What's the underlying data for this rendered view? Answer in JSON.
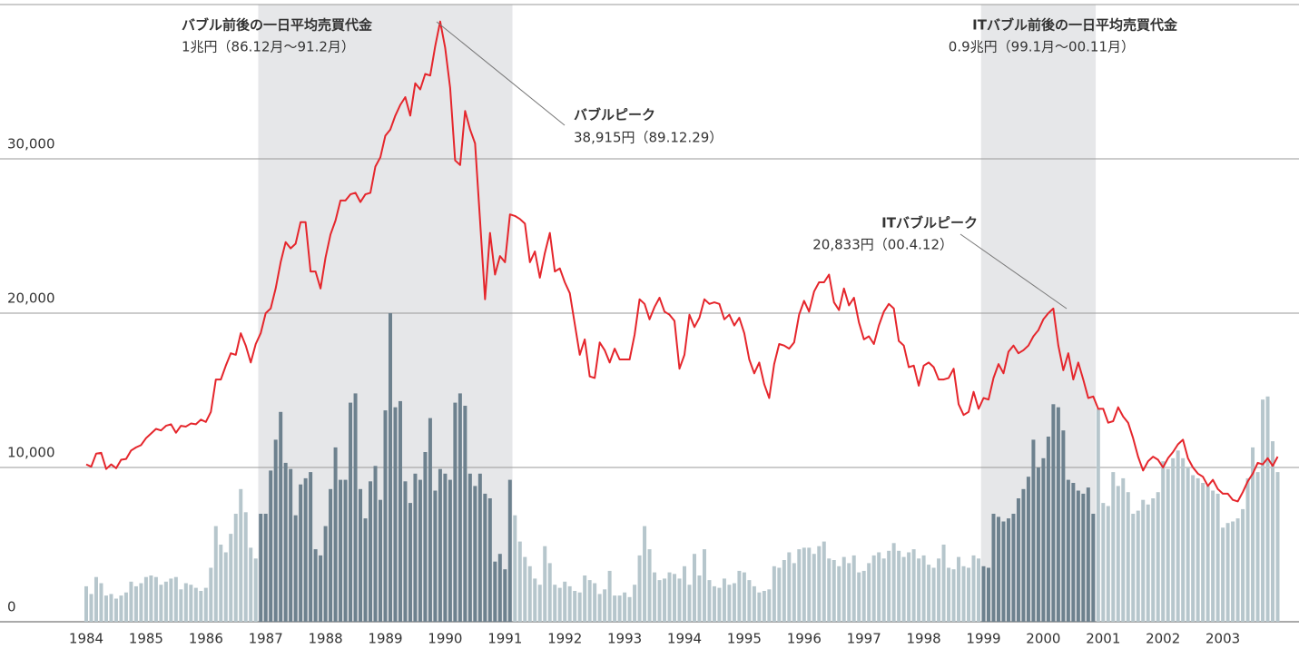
{
  "chart_data": {
    "type": "bar-line",
    "ylim": [
      0,
      40000
    ],
    "yticks": [
      {
        "value": 0,
        "label": "0"
      },
      {
        "value": 10000,
        "label": "10,000"
      },
      {
        "value": 20000,
        "label": "20,000"
      },
      {
        "value": 30000,
        "label": "30,000"
      }
    ],
    "grid": true,
    "annotations": [
      {
        "title": "バブル前後の一日平均売買代金",
        "text": "1兆円（86.12月～91.2月）"
      },
      {
        "title": "バブルピーク",
        "text": "38,915円（89.12.29）"
      },
      {
        "title": "ITバブル前後の一日平均売買代金",
        "text": "0.9兆円（99.1月～00.11月）"
      },
      {
        "title": "ITバブルピーク",
        "text": "20,833円（00.4.12）"
      }
    ],
    "categories": [
      "1984",
      null,
      null,
      null,
      null,
      null,
      null,
      null,
      null,
      null,
      null,
      null,
      "1985",
      null,
      null,
      null,
      null,
      null,
      null,
      null,
      null,
      null,
      null,
      null,
      "1986",
      null,
      null,
      null,
      null,
      null,
      null,
      null,
      null,
      null,
      null,
      null,
      "1987",
      null,
      null,
      null,
      null,
      null,
      null,
      null,
      null,
      null,
      null,
      null,
      "1988",
      null,
      null,
      null,
      null,
      null,
      null,
      null,
      null,
      null,
      null,
      null,
      "1989",
      null,
      null,
      null,
      null,
      null,
      null,
      null,
      null,
      null,
      null,
      null,
      "1990",
      null,
      null,
      null,
      null,
      null,
      null,
      null,
      null,
      null,
      null,
      null,
      "1991",
      null,
      null,
      null,
      null,
      null,
      null,
      null,
      null,
      null,
      null,
      null,
      "1992",
      null,
      null,
      null,
      null,
      null,
      null,
      null,
      null,
      null,
      null,
      null,
      "1993",
      null,
      null,
      null,
      null,
      null,
      null,
      null,
      null,
      null,
      null,
      null,
      "1994",
      null,
      null,
      null,
      null,
      null,
      null,
      null,
      null,
      null,
      null,
      null,
      "1995",
      null,
      null,
      null,
      null,
      null,
      null,
      null,
      null,
      null,
      null,
      null,
      "1996",
      null,
      null,
      null,
      null,
      null,
      null,
      null,
      null,
      null,
      null,
      null,
      "1997",
      null,
      null,
      null,
      null,
      null,
      null,
      null,
      null,
      null,
      null,
      null,
      "1998",
      null,
      null,
      null,
      null,
      null,
      null,
      null,
      null,
      null,
      null,
      null,
      "1999",
      null,
      null,
      null,
      null,
      null,
      null,
      null,
      null,
      null,
      null,
      null,
      "2000",
      null,
      null,
      null,
      null,
      null,
      null,
      null,
      null,
      null,
      null,
      null,
      "2001",
      null,
      null,
      null,
      null,
      null,
      null,
      null,
      null,
      null,
      null,
      null,
      "2002",
      null,
      null,
      null,
      null,
      null,
      null,
      null,
      null,
      null,
      null,
      null,
      "2003",
      null,
      null,
      null,
      null,
      null,
      null,
      null,
      null,
      null,
      null,
      null
    ],
    "series": [
      {
        "type": "line",
        "color": "#e5262c",
        "values": [
          10200,
          10050,
          10900,
          10950,
          9900,
          10200,
          9950,
          10500,
          10550,
          11100,
          11300,
          11450,
          11900,
          12200,
          12500,
          12400,
          12700,
          12800,
          12250,
          12700,
          12650,
          12850,
          12800,
          13100,
          12950,
          13600,
          15700,
          15700,
          16600,
          17400,
          17300,
          18700,
          17900,
          16800,
          18000,
          18700,
          20000,
          20300,
          21600,
          23300,
          24600,
          24200,
          24500,
          25900,
          25900,
          22700,
          22700,
          21600,
          23600,
          25100,
          26000,
          27300,
          27300,
          27700,
          27800,
          27200,
          27700,
          27800,
          29500,
          30100,
          31500,
          31900,
          32800,
          33500,
          34000,
          32800,
          34900,
          34500,
          35500,
          35400,
          37300,
          38900,
          37200,
          34600,
          29900,
          29600,
          33100,
          31900,
          31000,
          26000,
          20900,
          25200,
          22500,
          23700,
          23300,
          26400,
          26300,
          26100,
          25800,
          23300,
          24000,
          22300,
          23900,
          25200,
          22700,
          22900,
          22000,
          21300,
          19300,
          17300,
          18300,
          15900,
          15800,
          18100,
          17600,
          16800,
          17700,
          17000,
          17000,
          17000,
          18600,
          20900,
          20600,
          19600,
          20400,
          21000,
          20100,
          19900,
          19500,
          16400,
          17300,
          19900,
          19100,
          19700,
          20900,
          20600,
          20700,
          20600,
          19600,
          19900,
          19200,
          19700,
          18700,
          17000,
          16100,
          16800,
          15400,
          14500,
          16700,
          18000,
          17900,
          17700,
          18100,
          19900,
          20800,
          20100,
          21400,
          22000,
          22000,
          22500,
          20700,
          20200,
          21600,
          20500,
          21000,
          19400,
          18300,
          18500,
          18000,
          19200,
          20100,
          20600,
          20300,
          18200,
          17900,
          16500,
          16600,
          15300,
          16600,
          16800,
          16500,
          15700,
          15700,
          15800,
          16400,
          14100,
          13400,
          13600,
          14900,
          13800,
          14500,
          14400,
          15800,
          16700,
          16100,
          17500,
          17900,
          17400,
          17600,
          17900,
          18500,
          18900,
          19600,
          20000,
          20300,
          17900,
          16300,
          17400,
          15700,
          16800,
          15700,
          14500,
          14600,
          13800,
          13800,
          12900,
          13000,
          13900,
          13300,
          12900,
          11900,
          10700,
          9800,
          10400,
          10700,
          10500,
          10000,
          10600,
          11000,
          11500,
          11800,
          10600,
          10000,
          9600,
          9400,
          8800,
          9200,
          8600,
          8300,
          8300,
          7900,
          7800,
          8400,
          9100,
          9600,
          10300,
          10200,
          10600,
          10100,
          10700
        ]
      },
      {
        "type": "bar",
        "color": "#b6c6cc",
        "values": [
          2300,
          1800,
          2900,
          2500,
          1700,
          1800,
          1500,
          1700,
          1900,
          2600,
          2300,
          2500,
          2900,
          3000,
          2900,
          2400,
          2600,
          2800,
          2900,
          2100,
          2500,
          2400,
          2200,
          2000,
          2200,
          3500,
          6200,
          5000,
          4500,
          5700,
          7000,
          8600,
          7100,
          4800,
          4100,
          null,
          null,
          null,
          null,
          null,
          null,
          null,
          null,
          null,
          null,
          null,
          null,
          null,
          null,
          null,
          null,
          null,
          null,
          null,
          null,
          null,
          null,
          null,
          null,
          null,
          null,
          null,
          null,
          null,
          null,
          null,
          null,
          null,
          null,
          null,
          null,
          null,
          null,
          null,
          null,
          null,
          null,
          null,
          null,
          null,
          null,
          null,
          null,
          null,
          null,
          null,
          6900,
          5200,
          4200,
          3600,
          2800,
          2400,
          4900,
          3800,
          2400,
          2200,
          2600,
          2300,
          2000,
          1900,
          3000,
          2700,
          2500,
          1800,
          2100,
          3300,
          1700,
          1700,
          1900,
          1600,
          2400,
          4300,
          6200,
          4700,
          3200,
          2700,
          2800,
          3200,
          3100,
          2800,
          3600,
          2400,
          4400,
          3000,
          4700,
          2700,
          2300,
          2200,
          2800,
          2400,
          2500,
          3300,
          3200,
          2700,
          2300,
          1900,
          2000,
          2100,
          3600,
          3500,
          4000,
          4500,
          3800,
          4700,
          4800,
          4800,
          4400,
          4900,
          5200,
          4100,
          4000,
          3600,
          4200,
          3800,
          4300,
          3200,
          3300,
          3800,
          4300,
          4500,
          4100,
          4600,
          5100,
          4600,
          4200,
          4500,
          4700,
          4100,
          4300,
          3700,
          3500,
          4100,
          5000,
          3500,
          3400,
          4200,
          3600,
          3500,
          4300,
          4100,
          null,
          null,
          null,
          null,
          null,
          null,
          null,
          null,
          null,
          null,
          null,
          null,
          null,
          null,
          null,
          null,
          null,
          null,
          null,
          null,
          null,
          null,
          null,
          13800,
          7700,
          7500,
          9700,
          8800,
          9300,
          8400,
          7000,
          7200,
          7900,
          7600,
          8000,
          8400,
          10400,
          9900,
          10600,
          11100,
          10600,
          10000,
          9500,
          9300,
          9000,
          8800,
          8500,
          8300,
          6100,
          6400,
          6500,
          6700,
          7300,
          9300,
          11300,
          9700,
          14400,
          14600,
          11700,
          9700
        ]
      },
      {
        "type": "bar",
        "color": "#6d818e",
        "shade": "#e6e7e9",
        "values": [
          null,
          null,
          null,
          null,
          null,
          null,
          null,
          null,
          null,
          null,
          null,
          null,
          null,
          null,
          null,
          null,
          null,
          null,
          null,
          null,
          null,
          null,
          null,
          null,
          null,
          null,
          null,
          null,
          null,
          null,
          null,
          null,
          null,
          null,
          null,
          7000,
          7000,
          9800,
          11800,
          13600,
          10300,
          9900,
          6900,
          8900,
          9300,
          9700,
          4700,
          4300,
          6200,
          8600,
          11300,
          9200,
          9200,
          14200,
          14800,
          8600,
          6700,
          9100,
          10100,
          7900,
          13700,
          20000,
          13900,
          14300,
          9100,
          7700,
          9600,
          9200,
          11000,
          13200,
          8500,
          9900,
          9600,
          9200,
          14200,
          14800,
          14000,
          9600,
          8800,
          9600,
          8300,
          8000,
          3900,
          4400,
          3400,
          9200,
          null,
          null,
          null,
          null,
          null,
          null,
          null,
          null,
          null,
          null,
          null,
          null,
          null,
          null,
          null,
          null,
          null,
          null,
          null,
          null,
          null,
          null,
          null,
          null,
          null,
          null,
          null,
          null,
          null,
          null,
          null,
          null,
          null,
          null,
          null,
          null,
          null,
          null,
          null,
          null,
          null,
          null,
          null,
          null,
          null,
          null,
          null,
          null,
          null,
          null,
          null,
          null,
          null,
          null,
          null,
          null,
          null,
          null,
          null,
          null,
          null,
          null,
          null,
          null,
          null,
          null,
          null,
          null,
          null,
          null,
          null,
          null,
          null,
          null,
          null,
          null,
          null,
          null,
          null,
          null,
          null,
          null,
          null,
          null,
          null,
          null,
          null,
          null,
          null,
          null,
          null,
          null,
          null,
          null,
          3600,
          3500,
          7000,
          6800,
          6500,
          6700,
          7000,
          8000,
          8600,
          9400,
          11800,
          10000,
          10600,
          12000,
          14100,
          13900,
          12400,
          9200,
          9000,
          8500,
          8300,
          8700,
          7000,
          null,
          null,
          null,
          null,
          null,
          null,
          null,
          null,
          null,
          null,
          null,
          null,
          null,
          null,
          null,
          null,
          null,
          null,
          null,
          null,
          null,
          null,
          null,
          null,
          null,
          null,
          null,
          null,
          null,
          null,
          null,
          null,
          null,
          null,
          null,
          null,
          null
        ]
      }
    ]
  }
}
